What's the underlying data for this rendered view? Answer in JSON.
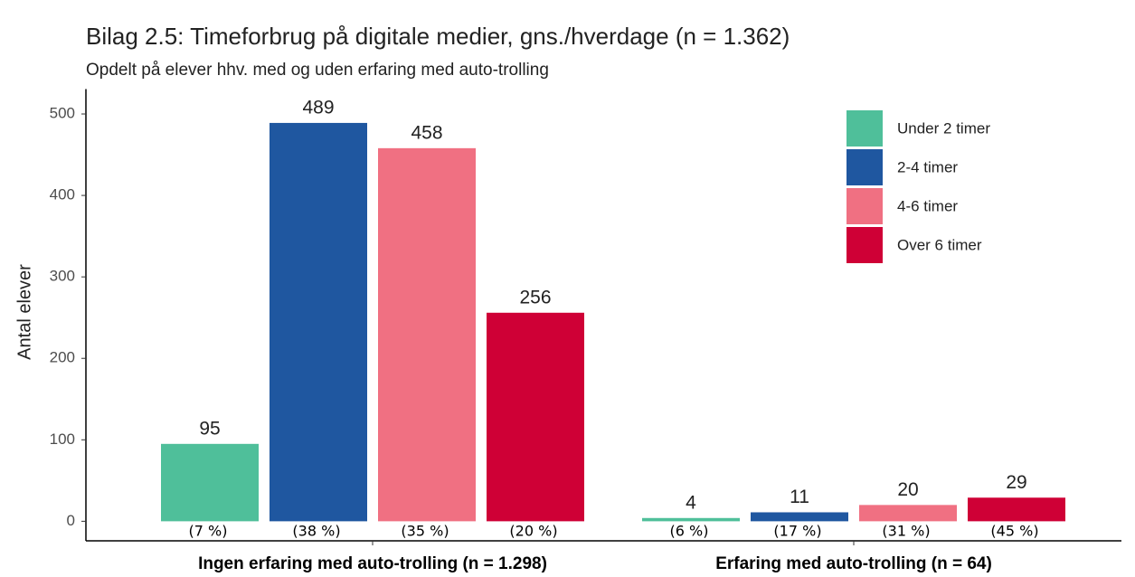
{
  "chart_data": {
    "type": "bar",
    "title": "Bilag 2.5: Timeforbrug på digitale medier, gns./hverdage (n = 1.362)",
    "subtitle": "Opdelt på elever hhv. med og uden erfaring med auto-trolling",
    "y_label": "Antal elever",
    "categories": [
      "Ingen erfaring med auto-trolling (n = 1.298)",
      "Erfaring med auto-trolling (n = 64)"
    ],
    "series": [
      {
        "name": "Under 2 timer",
        "color": "#4fbf9a",
        "values": [
          95,
          4
        ],
        "share_labels": [
          "(7 %)",
          "(6 %)"
        ]
      },
      {
        "name": "2-4 timer",
        "color": "#1f57a0",
        "values": [
          489,
          11
        ],
        "share_labels": [
          "(38 %)",
          "(17 %)"
        ]
      },
      {
        "name": "4-6 timer",
        "color": "#f07082",
        "values": [
          458,
          20
        ],
        "share_labels": [
          "(35 %)",
          "(31 %)"
        ]
      },
      {
        "name": "Over 6 timer",
        "color": "#cf0036",
        "values": [
          256,
          29
        ],
        "share_labels": [
          "(20 %)",
          "(45 %)"
        ]
      }
    ],
    "ylim": [
      -24,
      525
    ],
    "yticks": [
      0,
      100,
      200,
      300,
      400,
      500
    ],
    "legend": "top-right"
  }
}
